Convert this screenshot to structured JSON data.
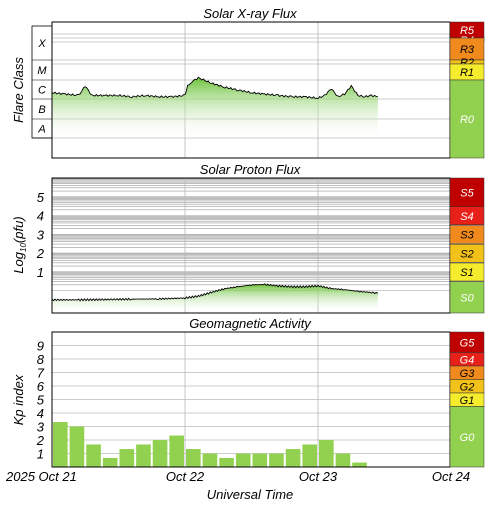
{
  "chart_data": [
    {
      "type": "area",
      "title": "Solar X-ray Flux",
      "ylabel": "Flare Class",
      "y_scale": "log",
      "class_labels": [
        "A",
        "B",
        "C",
        "M",
        "X"
      ],
      "x_ticks": [
        "2025 Oct 21",
        "Oct 22",
        "Oct 23",
        "Oct 24"
      ],
      "x_range": [
        "2025-10-21",
        "2025-10-24"
      ],
      "series": [
        {
          "x_days": [
            0,
            0.1,
            0.2,
            0.25,
            0.3,
            0.4,
            0.5,
            0.6,
            0.7,
            0.8,
            0.9,
            1.0,
            1.02,
            1.05,
            1.1,
            1.15,
            1.2,
            1.3,
            1.4,
            1.5,
            1.6,
            1.7,
            1.8,
            1.9,
            2.0,
            2.05,
            2.1,
            2.15,
            2.2,
            2.25,
            2.3,
            2.35,
            2.4,
            2.45
          ],
          "values_rel": [
            0.48,
            0.47,
            0.46,
            0.53,
            0.46,
            0.46,
            0.46,
            0.45,
            0.46,
            0.45,
            0.45,
            0.46,
            0.53,
            0.56,
            0.59,
            0.57,
            0.55,
            0.52,
            0.5,
            0.48,
            0.47,
            0.46,
            0.45,
            0.45,
            0.44,
            0.46,
            0.51,
            0.45,
            0.47,
            0.53,
            0.46,
            0.45,
            0.46,
            0.45
          ]
        }
      ],
      "scale_levels": [
        {
          "label": "R5",
          "color": "#c00000"
        },
        {
          "label": "R4",
          "color": "#e8201a"
        },
        {
          "label": "R3",
          "color": "#f08a1c"
        },
        {
          "label": "R2",
          "color": "#f2c21b"
        },
        {
          "label": "R1",
          "color": "#f5ec2e"
        },
        {
          "label": "R0",
          "color": "#92d050"
        }
      ]
    },
    {
      "type": "area",
      "title": "Solar Proton Flux",
      "ylabel": "Log10(pfu)",
      "ylabel_main": "Log",
      "ylabel_sub": "10",
      "ylabel_rest": "(pfu)",
      "y_ticks": [
        "1",
        "2",
        "3",
        "4",
        "5"
      ],
      "ylim": [
        -1.2,
        6
      ],
      "x_range": [
        "2025-10-21",
        "2025-10-24"
      ],
      "series": [
        {
          "x_days": [
            0,
            0.2,
            0.4,
            0.6,
            0.8,
            1.0,
            1.1,
            1.2,
            1.3,
            1.4,
            1.5,
            1.6,
            1.7,
            1.8,
            1.9,
            2.0,
            2.1,
            2.2,
            2.3,
            2.4,
            2.45
          ],
          "values": [
            -0.5,
            -0.5,
            -0.48,
            -0.46,
            -0.45,
            -0.4,
            -0.3,
            -0.1,
            0.1,
            0.2,
            0.3,
            0.32,
            0.25,
            0.2,
            0.2,
            0.25,
            0.1,
            0.05,
            -0.05,
            -0.1,
            -0.15
          ]
        }
      ],
      "scale_levels": [
        {
          "label": "S5",
          "color": "#c00000"
        },
        {
          "label": "S4",
          "color": "#e8201a"
        },
        {
          "label": "S3",
          "color": "#f08a1c"
        },
        {
          "label": "S2",
          "color": "#f2c21b"
        },
        {
          "label": "S1",
          "color": "#f5ec2e"
        },
        {
          "label": "S0",
          "color": "#92d050"
        }
      ]
    },
    {
      "type": "bar",
      "title": "Geomagnetic Activity",
      "ylabel": "Kp index",
      "xlabel": "Universal Time",
      "y_ticks": [
        "1",
        "2",
        "3",
        "4",
        "5",
        "6",
        "7",
        "8",
        "9"
      ],
      "ylim": [
        0,
        10
      ],
      "x_ticks": [
        "2025 Oct 21",
        "Oct 22",
        "Oct 23",
        "Oct 24"
      ],
      "values": [
        3.33,
        3.0,
        1.67,
        0.67,
        1.33,
        1.67,
        2.0,
        2.33,
        1.33,
        1.0,
        0.67,
        1.0,
        1.0,
        1.0,
        1.33,
        1.67,
        2.0,
        1.0,
        0.33
      ],
      "bar_color": "#92d050",
      "scale_levels": [
        {
          "label": "G5",
          "color": "#c00000"
        },
        {
          "label": "G4",
          "color": "#e8201a"
        },
        {
          "label": "G3",
          "color": "#f08a1c"
        },
        {
          "label": "G2",
          "color": "#f2c21b"
        },
        {
          "label": "G1",
          "color": "#f5ec2e"
        },
        {
          "label": "G0",
          "color": "#92d050"
        }
      ]
    }
  ]
}
